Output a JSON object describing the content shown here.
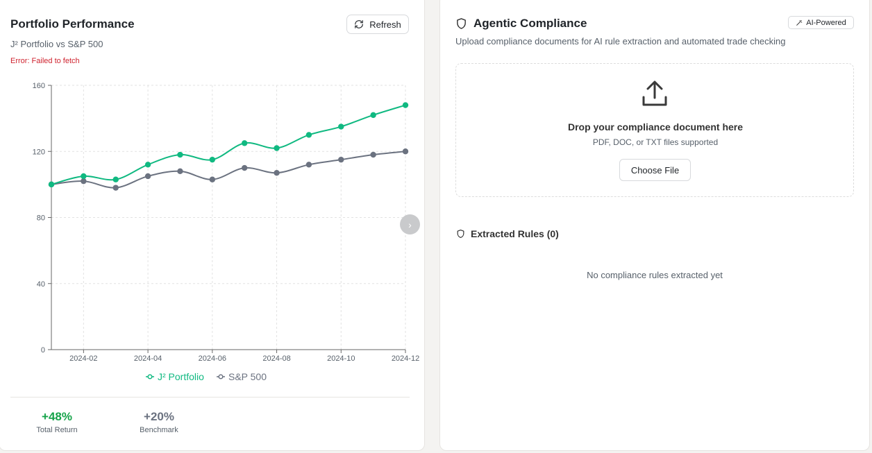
{
  "portfolio": {
    "title": "Portfolio Performance",
    "subtitle": "J² Portfolio vs S&P 500",
    "error": "Error: Failed to fetch",
    "refresh_label": "Refresh",
    "stats": [
      {
        "value": "+48%",
        "label": "Total Return",
        "color": "#16a34a"
      },
      {
        "value": "+20%",
        "label": "Benchmark",
        "color": "#6b7280"
      }
    ]
  },
  "chart_data": {
    "type": "line",
    "x": [
      "2024-01",
      "2024-02",
      "2024-03",
      "2024-04",
      "2024-05",
      "2024-06",
      "2024-07",
      "2024-08",
      "2024-09",
      "2024-10",
      "2024-11",
      "2024-12"
    ],
    "x_tick_labels": [
      "2024-02",
      "2024-04",
      "2024-06",
      "2024-08",
      "2024-10",
      "2024-12"
    ],
    "y_ticks": [
      0,
      40,
      80,
      120,
      160
    ],
    "ylim": [
      0,
      160
    ],
    "grid": true,
    "legend": "bottom-center",
    "series": [
      {
        "name": "J² Portfolio",
        "color": "#10b981",
        "values": [
          100,
          105,
          103,
          112,
          118,
          115,
          125,
          122,
          130,
          135,
          142,
          148
        ]
      },
      {
        "name": "S&P 500",
        "color": "#6b7280",
        "values": [
          100,
          102,
          98,
          105,
          108,
          103,
          110,
          107,
          112,
          115,
          118,
          120
        ]
      }
    ]
  },
  "compliance": {
    "title": "Agentic Compliance",
    "badge": "AI-Powered",
    "description": "Upload compliance documents for AI rule extraction and automated trade checking",
    "dropzone_title": "Drop your compliance document here",
    "dropzone_sub": "PDF, DOC, or TXT files supported",
    "choose_label": "Choose File",
    "rules_title": "Extracted Rules (0)",
    "empty_text": "No compliance rules extracted yet"
  },
  "icons": {
    "refresh": "refresh-icon",
    "shield": "shield-icon",
    "upload": "upload-icon",
    "wand": "wand-icon",
    "chevron": "chevron-right-icon"
  }
}
